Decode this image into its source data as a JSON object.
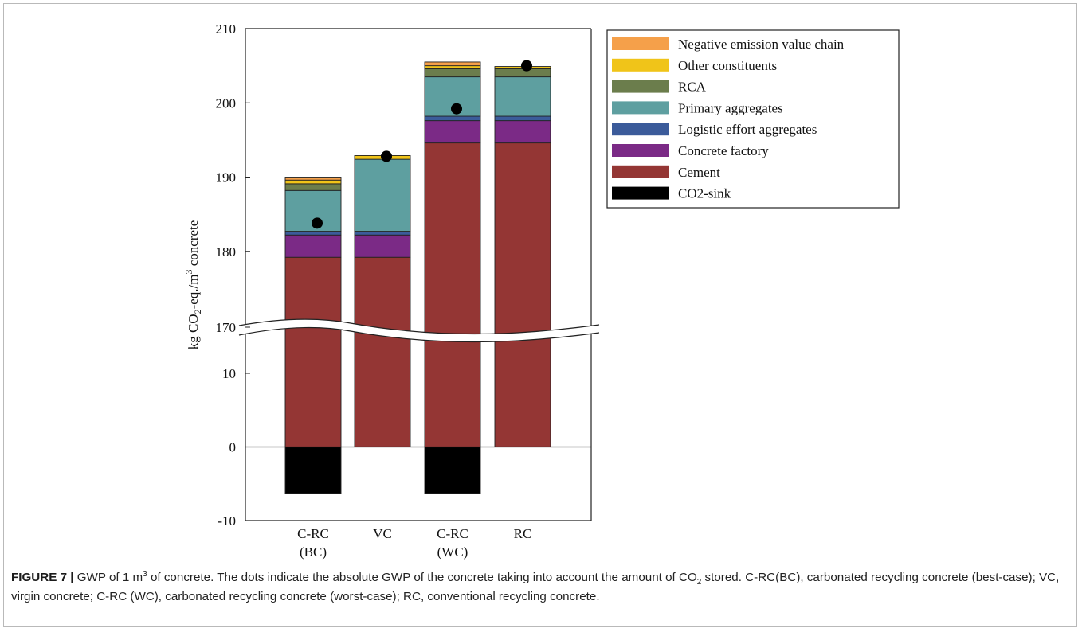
{
  "chart_data": {
    "type": "bar",
    "stacked": true,
    "broken_axis": true,
    "ylabel": "kg CO2-eq./m3 concrete",
    "ylabel_parts": {
      "a": "kg CO",
      "sub": "2",
      "b": "-eq./m",
      "sup": "3",
      "c": " concrete"
    },
    "categories": [
      {
        "top": "C-RC",
        "bottom": "(BC)"
      },
      {
        "top": "VC",
        "bottom": ""
      },
      {
        "top": "C-RC",
        "bottom": "(WC)"
      },
      {
        "top": "RC",
        "bottom": ""
      }
    ],
    "y_lower_range": [
      -10,
      10
    ],
    "y_upper_range": [
      170,
      210
    ],
    "y_ticks_lower": [
      "-10",
      "0",
      "10"
    ],
    "y_ticks_upper": [
      "170",
      "180",
      "190",
      "200",
      "210"
    ],
    "grid": false,
    "legend_position": "top-right outside",
    "series": [
      {
        "name": "Cement",
        "color": "#943634",
        "values": [
          179.2,
          179.2,
          194.6,
          194.6
        ]
      },
      {
        "name": "Concrete factory",
        "color": "#7b2a86",
        "values": [
          3.0,
          3.0,
          3.0,
          3.0
        ]
      },
      {
        "name": "Logistic effort aggregates",
        "color": "#3b5b9a",
        "values": [
          0.5,
          0.5,
          0.6,
          0.6
        ]
      },
      {
        "name": "Primary aggregates",
        "color": "#5e9fa0",
        "values": [
          5.5,
          9.7,
          5.3,
          5.3
        ]
      },
      {
        "name": "RCA",
        "color": "#6b7d4c",
        "values": [
          0.9,
          0.0,
          1.1,
          1.1
        ]
      },
      {
        "name": "Other constituents",
        "color": "#f0c419",
        "values": [
          0.5,
          0.5,
          0.4,
          0.3
        ]
      },
      {
        "name": "Negative emission value chain",
        "color": "#f5a04a",
        "values": [
          0.4,
          0.0,
          0.5,
          0.0
        ]
      },
      {
        "name": "CO2-sink",
        "color": "#000000",
        "values": [
          -6.3,
          0.0,
          -6.3,
          0.0
        ]
      }
    ],
    "legend_order": [
      "Negative emission value chain",
      "Other constituents",
      "RCA",
      "Primary aggregates",
      "Logistic effort aggregates",
      "Concrete factory",
      "Cement",
      "CO2-sink"
    ],
    "dots": {
      "label": "absolute GWP",
      "values": [
        183.8,
        192.8,
        199.2,
        205.0
      ]
    }
  },
  "caption": {
    "lead": "FIGURE 7 |",
    "t1": " GWP of 1 m",
    "sup": "3",
    "t2": " of concrete. The dots indicate the absolute GWP of the concrete taking into account the amount of CO",
    "sub": "2",
    "t3": " stored. C-RC(BC), carbonated recycling concrete (best-case); VC, virgin concrete; C-RC (WC), carbonated recycling concrete (worst-case); RC, conventional recycling concrete."
  }
}
